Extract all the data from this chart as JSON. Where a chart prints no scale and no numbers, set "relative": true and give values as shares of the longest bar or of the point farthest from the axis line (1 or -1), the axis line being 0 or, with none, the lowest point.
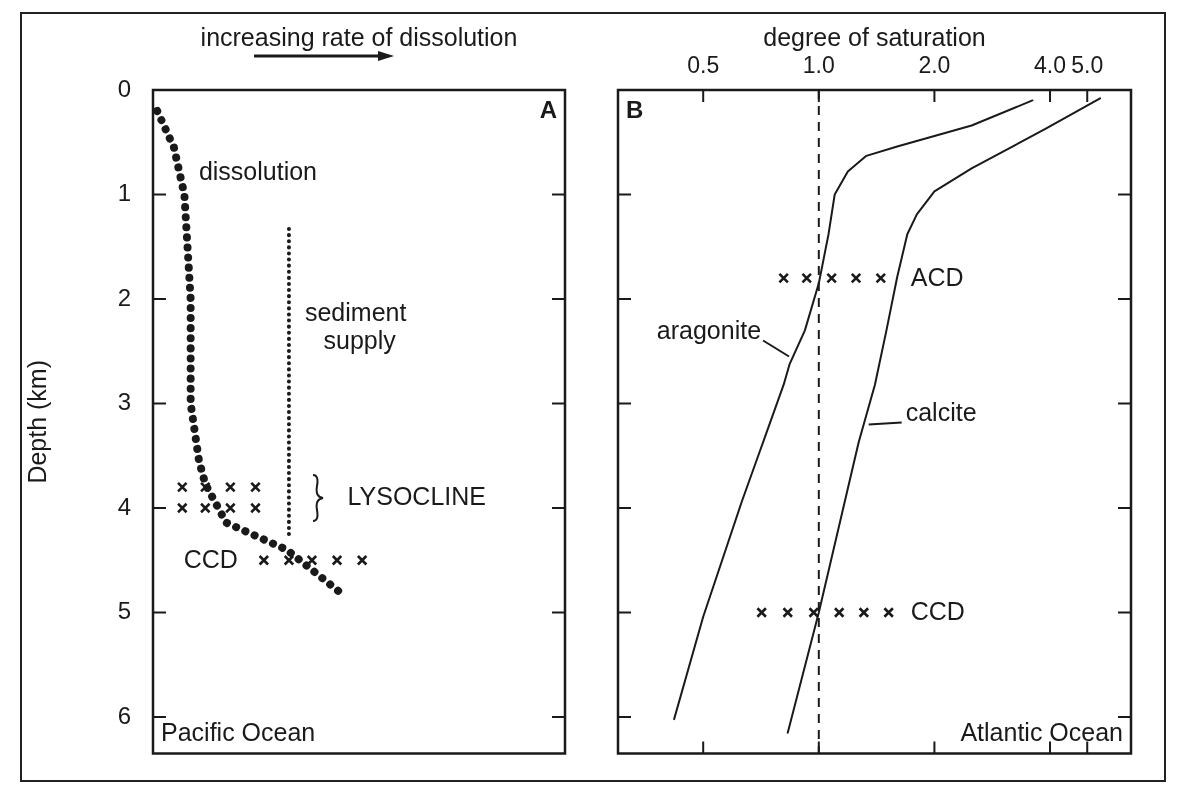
{
  "chart_data": [
    {
      "type": "line",
      "orientation": "horizontal",
      "relative": true,
      "xlabel": "increasing rate of dissolution",
      "ylabel": "Depth (km)",
      "ylim": [
        6.35,
        0
      ],
      "yticks": [
        0,
        1,
        2,
        3,
        4,
        5,
        6
      ],
      "series": [
        {
          "name": "dissolution",
          "color": "#1a1a1a",
          "line_style": "dotted",
          "x": [
            0.2,
            0.55,
            1.0,
            2.0,
            3.0,
            3.55,
            3.77,
            4.14,
            4.4,
            4.8
          ],
          "values": [
            0.02,
            0.1,
            0.15,
            0.18,
            0.18,
            0.22,
            0.25,
            0.35,
            0.64,
            0.89
          ]
        },
        {
          "name": "sediment supply",
          "color": "#1a1a1a",
          "line_style": "dotted",
          "x": [
            1.33,
            4.3
          ],
          "values": [
            0.65,
            0.65
          ]
        },
        {
          "type": "scatter",
          "marker": "cross",
          "color": "#1a1a1a",
          "x": [
            3.8,
            3.8,
            3.8,
            3.8,
            4.0,
            4.0,
            4.0,
            4.0
          ],
          "values": [
            0.14,
            0.25,
            0.37,
            0.49,
            0.14,
            0.25,
            0.37,
            0.49
          ]
        },
        {
          "type": "scatter",
          "marker": "cross",
          "color": "#1a1a1a",
          "x": [
            4.5,
            4.5,
            4.5,
            4.5,
            4.5
          ],
          "values": [
            0.53,
            0.65,
            0.76,
            0.88,
            1.0
          ]
        }
      ],
      "annotations": [
        "A",
        "Pacific Ocean",
        "LYSOCLINE",
        "CCD"
      ]
    },
    {
      "type": "line",
      "log": "x",
      "xlabel": "degree of saturation",
      "xlim": [
        0.3,
        6.5
      ],
      "xticks": [
        0.5,
        {
          "value": 1,
          "label": "1.0"
        },
        {
          "value": 2,
          "label": "2.0"
        },
        {
          "value": 4,
          "label": "4.0"
        },
        {
          "value": 5,
          "label": "5.0"
        }
      ],
      "tick_labels": "x",
      "ylim": [
        6.35,
        0
      ],
      "yticks": [
        {
          "value": 0,
          "label": null
        },
        {
          "value": 1,
          "label": null
        },
        {
          "value": 2,
          "label": null
        },
        {
          "value": 3,
          "label": null
        },
        {
          "value": 4,
          "label": null
        },
        {
          "value": 5,
          "label": null
        },
        {
          "value": 6,
          "label": null
        }
      ],
      "series": [
        {
          "name": "aragonite",
          "color": "#1a1a1a",
          "line_style": "solid",
          "x": [
            3.6,
            2.5,
            1.6,
            1.33,
            1.19,
            1.1,
            1.06,
            1.0,
            0.92,
            0.84,
            0.81,
            0.63,
            0.5,
            0.42
          ],
          "values": [
            0.1,
            0.34,
            0.54,
            0.63,
            0.78,
            1.0,
            1.38,
            1.85,
            2.3,
            2.62,
            2.82,
            3.94,
            5.04,
            6.02
          ]
        },
        {
          "name": "calcite",
          "color": "#1a1a1a",
          "line_style": "solid",
          "x": [
            5.4,
            3.9,
            2.5,
            2.0,
            1.8,
            1.7,
            1.6,
            1.5,
            1.4,
            1.27,
            1.0,
            0.83
          ],
          "values": [
            0.08,
            0.37,
            0.75,
            0.97,
            1.19,
            1.38,
            1.79,
            2.3,
            2.82,
            3.37,
            5.0,
            6.15
          ]
        },
        {
          "type": "scatter",
          "marker": "cross",
          "color": "#1a1a1a",
          "x": [
            0.81,
            0.93,
            1.08,
            1.25,
            1.45
          ],
          "values": [
            1.8,
            1.8,
            1.8,
            1.8,
            1.8
          ]
        },
        {
          "type": "scatter",
          "marker": "cross",
          "color": "#1a1a1a",
          "x": [
            0.71,
            0.83,
            0.97,
            1.13,
            1.31,
            1.52
          ],
          "values": [
            5.0,
            5.0,
            5.0,
            5.0,
            5.0,
            5.0
          ]
        }
      ],
      "ref_lines": [
        {
          "axis": "x",
          "value": 1,
          "line_style": "dashed",
          "color": "#1a1a1a"
        }
      ],
      "annotations": [
        "B",
        "Atlantic Ocean",
        "ACD",
        "CCD"
      ]
    }
  ]
}
